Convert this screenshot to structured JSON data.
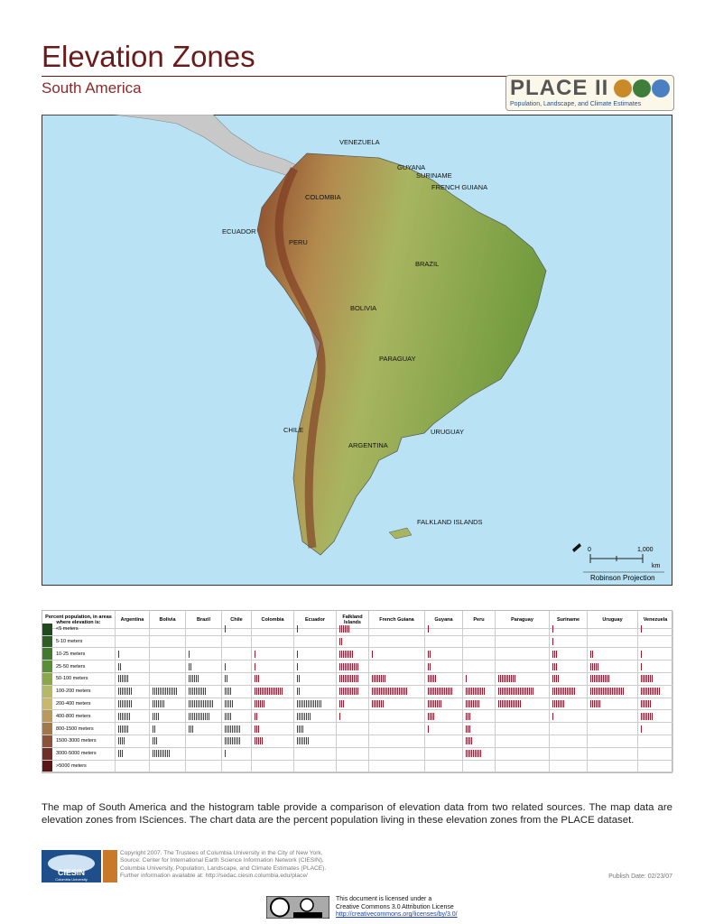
{
  "header": {
    "title": "Elevation Zones",
    "subtitle": "South America",
    "logo": {
      "name": "PLACE II",
      "tagline": "Population, Landscape, and Climate Estimates"
    }
  },
  "map": {
    "labels": [
      "VENEZUELA",
      "GUYANA",
      "SURINAME",
      "FRENCH GUIANA",
      "COLOMBIA",
      "ECUADOR",
      "PERU",
      "BRAZIL",
      "BOLIVIA",
      "PARAGUAY",
      "CHILE",
      "ARGENTINA",
      "URUGUAY",
      "FALKLAND ISLANDS"
    ],
    "scale": {
      "start": "0",
      "end": "1,000",
      "unit": "km"
    },
    "projection": "Robinson Projection"
  },
  "histogram": {
    "header": "Percent population, in areas where elevation is:",
    "countries": [
      "Argentina",
      "Bolivia",
      "Brazil",
      "Chile",
      "Colombia",
      "Ecuador",
      "Falkland Islands",
      "French Guiana",
      "Guyana",
      "Peru",
      "Paraguay",
      "Suriname",
      "Uruguay",
      "Venezuela"
    ],
    "zones": [
      "<5 meters",
      "5-10 meters",
      "10-25 meters",
      "25-50 meters",
      "50-100 meters",
      "100-200 meters",
      "200-400 meters",
      "400-800 meters",
      "800-1500 meters",
      "1500-3000 meters",
      "3000-5000 meters",
      ">5000 meters"
    ],
    "zone_colors": [
      "#1f4a1c",
      "#2d5e24",
      "#3f7a2e",
      "#5a8e36",
      "#8aa84a",
      "#b6b964",
      "#c8b86a",
      "#b89a5a",
      "#a2774a",
      "#8a5238",
      "#702f26",
      "#5a1515"
    ],
    "bar_color": "#a0192a",
    "values": [
      [
        0,
        0,
        0,
        1,
        0,
        1,
        6,
        0,
        1,
        0,
        0,
        1,
        0,
        1
      ],
      [
        0,
        0,
        0,
        0,
        0,
        0,
        2,
        0,
        0,
        0,
        0,
        1,
        0,
        0
      ],
      [
        1,
        0,
        1,
        0,
        1,
        1,
        8,
        1,
        2,
        0,
        0,
        3,
        2,
        1
      ],
      [
        2,
        0,
        2,
        1,
        1,
        1,
        11,
        0,
        2,
        0,
        0,
        3,
        5,
        1
      ],
      [
        6,
        0,
        6,
        2,
        3,
        2,
        11,
        8,
        5,
        1,
        10,
        4,
        11,
        7
      ],
      [
        8,
        14,
        10,
        4,
        16,
        2,
        11,
        20,
        14,
        11,
        20,
        13,
        19,
        11
      ],
      [
        8,
        7,
        14,
        5,
        6,
        14,
        3,
        7,
        8,
        8,
        13,
        7,
        6,
        6
      ],
      [
        7,
        4,
        12,
        4,
        2,
        8,
        1,
        0,
        4,
        3,
        0,
        1,
        0,
        7
      ],
      [
        6,
        2,
        3,
        9,
        3,
        4,
        0,
        0,
        1,
        3,
        0,
        0,
        0,
        1
      ],
      [
        4,
        3,
        0,
        9,
        5,
        7,
        0,
        0,
        0,
        4,
        0,
        0,
        0,
        0
      ],
      [
        3,
        10,
        0,
        1,
        0,
        0,
        0,
        0,
        0,
        9,
        0,
        0,
        0,
        0
      ],
      [
        0,
        0,
        0,
        0,
        0,
        0,
        0,
        0,
        0,
        0,
        0,
        0,
        0,
        0
      ]
    ]
  },
  "description": "The map of South America and the histogram table provide a comparison of elevation data from two related sources.  The map data are elevation zones from ISciences.  The chart data are the percent population living in these elevation zones from the PLACE dataset.",
  "footer": {
    "ciesin": "CIESIN",
    "columbia": "Columbia University",
    "credits": [
      "Copyright 2007. The Trustees of Columbia University in the City of New York.",
      "Source: Center for International Earth Science Information Network (CIESIN),",
      "Columbia University, Population, Landscape, and Climate Estimates (PLACE).",
      "Further information available at: http://sedac.ciesin.columbia.edu/place/"
    ],
    "publish_date": "Publish Date: 02/23/07",
    "license": [
      "This document is licensed under a",
      "Creative Commons 3.0 Attribution License",
      "http://creativecommons.org/licenses/by/3.0/"
    ]
  }
}
